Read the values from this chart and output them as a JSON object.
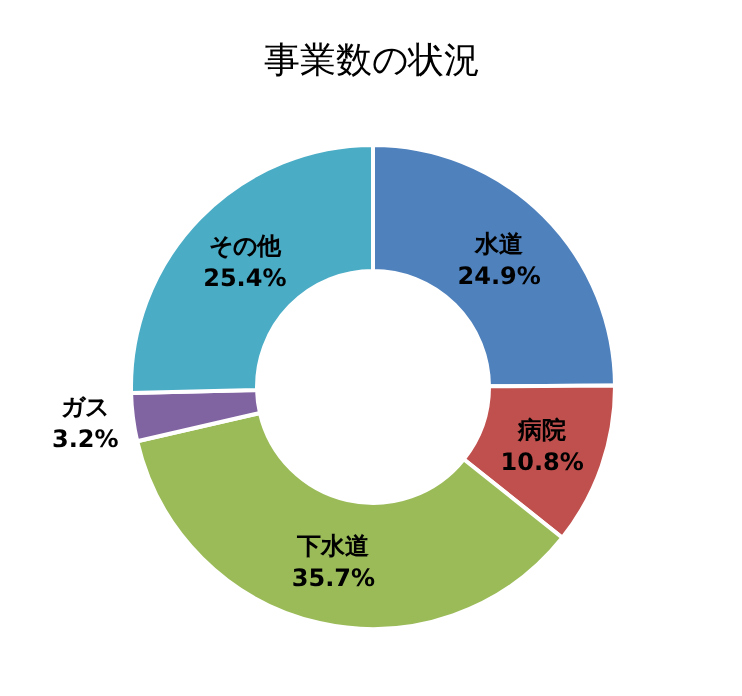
{
  "chart_data": {
    "type": "donut",
    "title": "事業数の状況",
    "categories": [
      "水道",
      "病院",
      "下水道",
      "ガス",
      "その他"
    ],
    "values": [
      24.9,
      10.8,
      35.7,
      3.2,
      25.4
    ],
    "value_labels": [
      "24.9%",
      "10.8%",
      "35.7%",
      "3.2%",
      "25.4%"
    ],
    "colors": [
      "#4f81bd",
      "#c0504d",
      "#9bbb59",
      "#8064a2",
      "#4bacc6"
    ]
  }
}
